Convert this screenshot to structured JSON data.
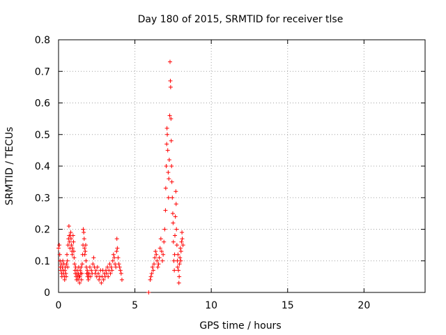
{
  "chart_data": {
    "type": "scatter",
    "title": "Day 180 of 2015, SRMTID for receiver tlse",
    "xlabel": "GPS time / hours",
    "ylabel": "SRMTID / TECUs",
    "xlim": [
      0,
      24
    ],
    "ylim": [
      0,
      0.8
    ],
    "xticks": [
      0,
      5,
      10,
      15,
      20
    ],
    "yticks": [
      0,
      0.1,
      0.2,
      0.3,
      0.4,
      0.5,
      0.6,
      0.7,
      0.8
    ],
    "xtick_labels": [
      "0",
      "5",
      "10",
      "15",
      "20"
    ],
    "ytick_labels": [
      "0",
      "0.1",
      "0.2",
      "0.3",
      "0.4",
      "0.5",
      "0.6",
      "0.7",
      "0.8"
    ],
    "grid": true,
    "marker": "+",
    "color": "#ff0000",
    "series": [
      {
        "name": "SRMTID",
        "points": [
          [
            0.0,
            0.14
          ],
          [
            0.05,
            0.15
          ],
          [
            0.08,
            0.12
          ],
          [
            0.1,
            0.1
          ],
          [
            0.12,
            0.08
          ],
          [
            0.15,
            0.07
          ],
          [
            0.18,
            0.09
          ],
          [
            0.2,
            0.06
          ],
          [
            0.22,
            0.05
          ],
          [
            0.25,
            0.08
          ],
          [
            0.28,
            0.1
          ],
          [
            0.3,
            0.07
          ],
          [
            0.32,
            0.06
          ],
          [
            0.35,
            0.09
          ],
          [
            0.38,
            0.05
          ],
          [
            0.4,
            0.04
          ],
          [
            0.42,
            0.07
          ],
          [
            0.45,
            0.08
          ],
          [
            0.48,
            0.06
          ],
          [
            0.5,
            0.05
          ],
          [
            0.52,
            0.09
          ],
          [
            0.55,
            0.12
          ],
          [
            0.58,
            0.1
          ],
          [
            0.6,
            0.08
          ],
          [
            0.62,
            0.15
          ],
          [
            0.65,
            0.17
          ],
          [
            0.68,
            0.21
          ],
          [
            0.7,
            0.18
          ],
          [
            0.72,
            0.16
          ],
          [
            0.75,
            0.14
          ],
          [
            0.78,
            0.18
          ],
          [
            0.8,
            0.19
          ],
          [
            0.82,
            0.17
          ],
          [
            0.85,
            0.15
          ],
          [
            0.88,
            0.13
          ],
          [
            0.9,
            0.12
          ],
          [
            0.92,
            0.14
          ],
          [
            0.95,
            0.18
          ],
          [
            0.98,
            0.16
          ],
          [
            1.0,
            0.13
          ],
          [
            1.02,
            0.11
          ],
          [
            1.05,
            0.09
          ],
          [
            1.08,
            0.07
          ],
          [
            1.1,
            0.06
          ],
          [
            1.12,
            0.08
          ],
          [
            1.15,
            0.05
          ],
          [
            1.18,
            0.04
          ],
          [
            1.2,
            0.06
          ],
          [
            1.22,
            0.07
          ],
          [
            1.25,
            0.05
          ],
          [
            1.28,
            0.04
          ],
          [
            1.3,
            0.06
          ],
          [
            1.32,
            0.08
          ],
          [
            1.35,
            0.05
          ],
          [
            1.38,
            0.03
          ],
          [
            1.4,
            0.05
          ],
          [
            1.42,
            0.07
          ],
          [
            1.45,
            0.06
          ],
          [
            1.48,
            0.08
          ],
          [
            1.5,
            0.04
          ],
          [
            1.52,
            0.06
          ],
          [
            1.55,
            0.09
          ],
          [
            1.58,
            0.12
          ],
          [
            1.6,
            0.15
          ],
          [
            1.62,
            0.2
          ],
          [
            1.65,
            0.19
          ],
          [
            1.68,
            0.17
          ],
          [
            1.7,
            0.14
          ],
          [
            1.72,
            0.12
          ],
          [
            1.75,
            0.13
          ],
          [
            1.78,
            0.15
          ],
          [
            1.8,
            0.1
          ],
          [
            1.82,
            0.08
          ],
          [
            1.85,
            0.06
          ],
          [
            1.88,
            0.07
          ],
          [
            1.9,
            0.05
          ],
          [
            1.92,
            0.06
          ],
          [
            1.95,
            0.04
          ],
          [
            1.98,
            0.05
          ],
          [
            2.0,
            0.06
          ],
          [
            2.05,
            0.08
          ],
          [
            2.1,
            0.05
          ],
          [
            2.15,
            0.07
          ],
          [
            2.2,
            0.06
          ],
          [
            2.25,
            0.09
          ],
          [
            2.3,
            0.11
          ],
          [
            2.35,
            0.08
          ],
          [
            2.4,
            0.06
          ],
          [
            2.45,
            0.07
          ],
          [
            2.5,
            0.05
          ],
          [
            2.55,
            0.08
          ],
          [
            2.6,
            0.06
          ],
          [
            2.65,
            0.04
          ],
          [
            2.7,
            0.05
          ],
          [
            2.75,
            0.07
          ],
          [
            2.8,
            0.03
          ],
          [
            2.85,
            0.05
          ],
          [
            2.9,
            0.07
          ],
          [
            2.95,
            0.04
          ],
          [
            3.0,
            0.06
          ],
          [
            3.05,
            0.05
          ],
          [
            3.1,
            0.07
          ],
          [
            3.15,
            0.06
          ],
          [
            3.2,
            0.08
          ],
          [
            3.25,
            0.05
          ],
          [
            3.3,
            0.07
          ],
          [
            3.35,
            0.09
          ],
          [
            3.4,
            0.06
          ],
          [
            3.45,
            0.08
          ],
          [
            3.5,
            0.07
          ],
          [
            3.55,
            0.1
          ],
          [
            3.6,
            0.12
          ],
          [
            3.65,
            0.11
          ],
          [
            3.7,
            0.09
          ],
          [
            3.75,
            0.08
          ],
          [
            3.8,
            0.13
          ],
          [
            3.82,
            0.17
          ],
          [
            3.85,
            0.14
          ],
          [
            3.9,
            0.11
          ],
          [
            3.95,
            0.09
          ],
          [
            4.0,
            0.08
          ],
          [
            4.05,
            0.07
          ],
          [
            4.1,
            0.06
          ],
          [
            4.15,
            0.04
          ],
          [
            5.9,
            0.0
          ],
          [
            6.0,
            0.04
          ],
          [
            6.05,
            0.05
          ],
          [
            6.1,
            0.06
          ],
          [
            6.15,
            0.08
          ],
          [
            6.2,
            0.07
          ],
          [
            6.25,
            0.09
          ],
          [
            6.3,
            0.11
          ],
          [
            6.35,
            0.13
          ],
          [
            6.4,
            0.12
          ],
          [
            6.45,
            0.1
          ],
          [
            6.5,
            0.08
          ],
          [
            6.55,
            0.09
          ],
          [
            6.6,
            0.11
          ],
          [
            6.65,
            0.14
          ],
          [
            6.7,
            0.17
          ],
          [
            6.75,
            0.13
          ],
          [
            6.8,
            0.1
          ],
          [
            6.85,
            0.12
          ],
          [
            6.9,
            0.16
          ],
          [
            6.95,
            0.2
          ],
          [
            7.0,
            0.26
          ],
          [
            7.02,
            0.33
          ],
          [
            7.05,
            0.4
          ],
          [
            7.08,
            0.47
          ],
          [
            7.1,
            0.52
          ],
          [
            7.12,
            0.5
          ],
          [
            7.15,
            0.45
          ],
          [
            7.18,
            0.38
          ],
          [
            7.2,
            0.3
          ],
          [
            7.22,
            0.36
          ],
          [
            7.25,
            0.42
          ],
          [
            7.28,
            0.56
          ],
          [
            7.3,
            0.73
          ],
          [
            7.32,
            0.67
          ],
          [
            7.34,
            0.65
          ],
          [
            7.36,
            0.55
          ],
          [
            7.38,
            0.48
          ],
          [
            7.4,
            0.4
          ],
          [
            7.42,
            0.35
          ],
          [
            7.45,
            0.3
          ],
          [
            7.48,
            0.25
          ],
          [
            7.5,
            0.22
          ],
          [
            7.52,
            0.16
          ],
          [
            7.55,
            0.1
          ],
          [
            7.58,
            0.07
          ],
          [
            7.6,
            0.12
          ],
          [
            7.62,
            0.18
          ],
          [
            7.65,
            0.24
          ],
          [
            7.68,
            0.32
          ],
          [
            7.7,
            0.28
          ],
          [
            7.72,
            0.2
          ],
          [
            7.75,
            0.15
          ],
          [
            7.78,
            0.1
          ],
          [
            7.8,
            0.08
          ],
          [
            7.82,
            0.12
          ],
          [
            7.85,
            0.07
          ],
          [
            7.88,
            0.03
          ],
          [
            7.9,
            0.05
          ],
          [
            7.92,
            0.09
          ],
          [
            7.95,
            0.11
          ],
          [
            7.98,
            0.14
          ],
          [
            8.0,
            0.1
          ],
          [
            8.02,
            0.13
          ],
          [
            8.05,
            0.16
          ],
          [
            8.08,
            0.19
          ],
          [
            8.1,
            0.17
          ],
          [
            8.15,
            0.15
          ]
        ]
      }
    ]
  }
}
